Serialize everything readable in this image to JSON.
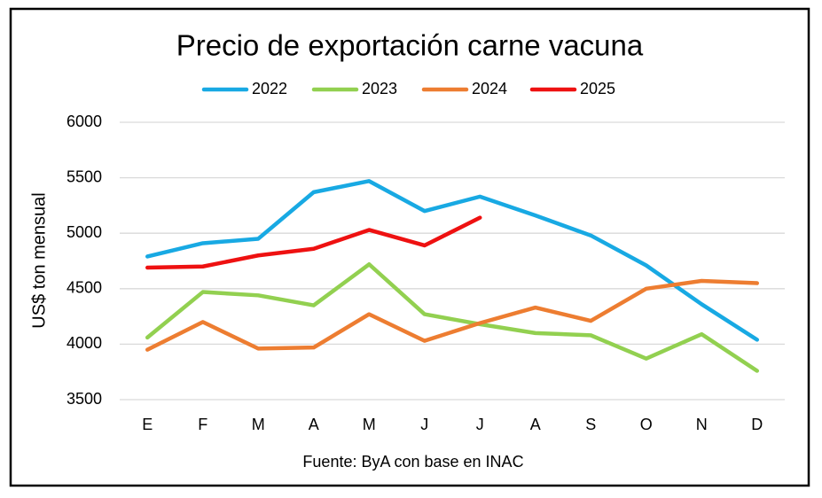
{
  "chart_data": {
    "type": "line",
    "title": "Precio de exportación carne vacuna",
    "y_label": "US$ ton mensual",
    "source": "Fuente: ByA con base en INAC",
    "categories": [
      "E",
      "F",
      "M",
      "A",
      "M",
      "J",
      "J",
      "A",
      "S",
      "O",
      "N",
      "D"
    ],
    "series": [
      {
        "name": "2022",
        "color": "#18a9e3",
        "values": [
          4790,
          4910,
          4950,
          5370,
          5470,
          5200,
          5330,
          5160,
          4980,
          4710,
          4360,
          4040
        ]
      },
      {
        "name": "2023",
        "color": "#92d050",
        "values": [
          4060,
          4470,
          4440,
          4350,
          4720,
          4270,
          4180,
          4100,
          4080,
          3870,
          4090,
          3760
        ]
      },
      {
        "name": "2024",
        "color": "#ed7d31",
        "values": [
          3950,
          4200,
          3960,
          3970,
          4270,
          4030,
          4190,
          4330,
          4210,
          4500,
          4570,
          4550
        ]
      },
      {
        "name": "2025",
        "color": "#ee1111",
        "values": [
          4690,
          4700,
          4800,
          4860,
          5030,
          4890,
          5140,
          null,
          null,
          null,
          null,
          null
        ]
      }
    ],
    "ylim": [
      3500,
      6000
    ],
    "yticks": [
      3500,
      4000,
      4500,
      5000,
      5500,
      6000
    ],
    "grid": true,
    "legend": "top"
  }
}
